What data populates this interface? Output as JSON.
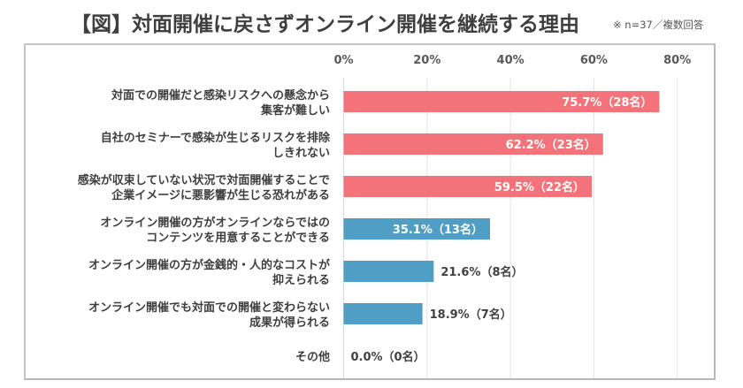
{
  "title": {
    "main": "【図】対面開催に戻さずオンライン開催を継続する理由",
    "note": "※ n=37／複数回答"
  },
  "colors": {
    "highlight": "#f4737a",
    "normal": "#4f9ec6",
    "grid": "#e3e3e3"
  },
  "chart_data": {
    "type": "bar",
    "orientation": "horizontal",
    "title": "【図】対面開催に戻さずオンライン開催を継続する理由",
    "subtitle": "※ n=37／複数回答",
    "xlabel": "",
    "ylabel": "",
    "xlim": [
      0,
      80
    ],
    "x_ticks": [
      "0%",
      "20%",
      "40%",
      "60%",
      "80%"
    ],
    "x_tick_values": [
      0,
      20,
      40,
      60,
      80
    ],
    "x_axis_position": "top",
    "grid": true,
    "legend": "none",
    "categories": [
      [
        "対面での開催だと感染リスクへの懸念から",
        "集客が難しい"
      ],
      [
        "自社のセミナーで感染が生じるリスクを排除",
        "しきれない"
      ],
      [
        "感染が収束していない状況で対面開催することで",
        "企業イメージに悪影響が生じる恐れがある"
      ],
      [
        "オンライン開催の方がオンラインならではの",
        "コンテンツを用意することができる"
      ],
      [
        "オンライン開催の方が金銭的・人的なコストが",
        "抑えられる"
      ],
      [
        "オンライン開催でも対面での開催と変わらない",
        "成果が得られる"
      ],
      [
        "その他"
      ]
    ],
    "values": [
      75.7,
      62.2,
      59.5,
      35.1,
      21.6,
      18.9,
      0.0
    ],
    "counts": [
      28,
      23,
      22,
      13,
      8,
      7,
      0
    ],
    "data_labels": [
      "75.7%（28名）",
      "62.2%（23名）",
      "59.5%（22名）",
      "35.1%（13名）",
      "21.6%（8名）",
      "18.9%（7名）",
      "0.0%（0名）"
    ],
    "bar_colors": [
      "highlight",
      "highlight",
      "highlight",
      "normal",
      "normal",
      "normal",
      "normal"
    ],
    "label_inside": [
      true,
      true,
      true,
      true,
      false,
      false,
      false
    ]
  }
}
